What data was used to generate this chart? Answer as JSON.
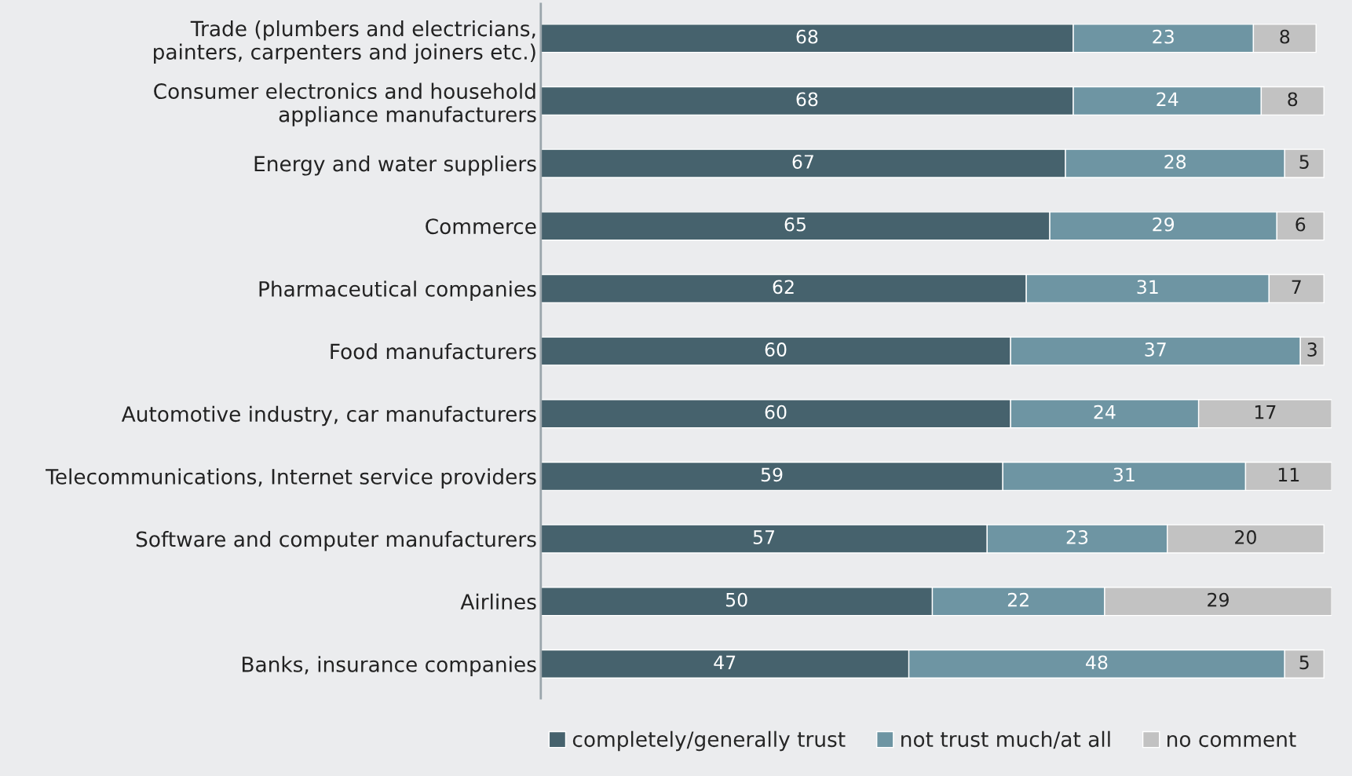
{
  "chart_data": {
    "type": "bar",
    "orientation": "horizontal",
    "stacked": true,
    "data_labels": true,
    "legend": "bottom",
    "grid": false,
    "categories": [
      "Trade (plumbers and electricians,\npainters, carpenters and joiners etc.)",
      "Consumer electronics and household\nappliance manufacturers",
      "Energy and water suppliers",
      "Commerce",
      "Pharmaceutical companies",
      "Food manufacturers",
      "Automotive industry, car manufacturers",
      "Telecommunications, Internet service providers",
      "Software and computer manufacturers",
      "Airlines",
      "Banks, insurance companies"
    ],
    "series": [
      {
        "name": "completely/generally trust",
        "color": "#46626d",
        "values": [
          68,
          68,
          67,
          65,
          62,
          60,
          60,
          59,
          57,
          50,
          47
        ]
      },
      {
        "name": "not trust much/at all",
        "color": "#6e95a3",
        "values": [
          23,
          24,
          28,
          29,
          31,
          37,
          24,
          31,
          23,
          22,
          48
        ]
      },
      {
        "name": "no comment",
        "color": "#c2c2c2",
        "values": [
          8,
          8,
          5,
          6,
          7,
          3,
          17,
          11,
          20,
          29,
          5
        ]
      }
    ]
  }
}
